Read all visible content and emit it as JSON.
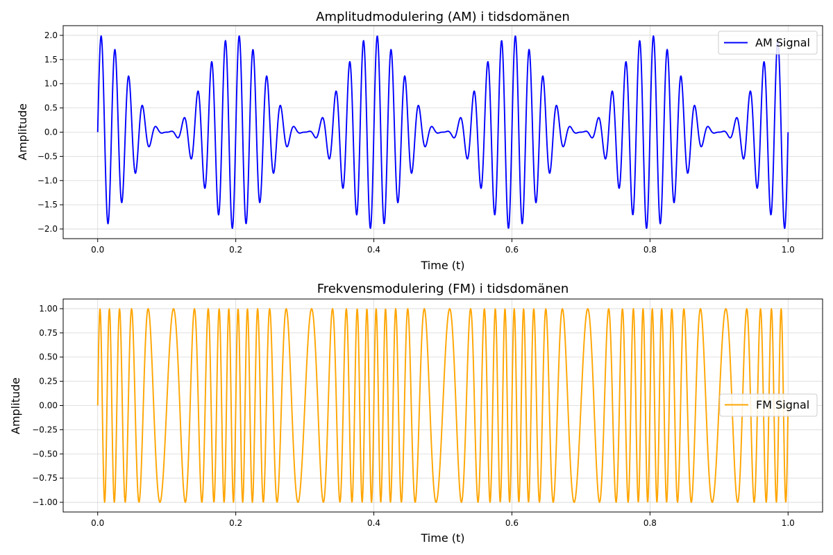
{
  "chart_data": [
    {
      "type": "line",
      "title": "Amplitudmodulering (AM) i tidsdomänen",
      "xlabel": "Time (t)",
      "ylabel": "Amplitude",
      "xlim": [
        -0.05,
        1.05
      ],
      "ylim": [
        -2.2,
        2.2
      ],
      "xticks": [
        0.0,
        0.2,
        0.4,
        0.6,
        0.8,
        1.0
      ],
      "xtick_labels": [
        "0.0",
        "0.2",
        "0.4",
        "0.6",
        "0.8",
        "1.0"
      ],
      "yticks": [
        -2.0,
        -1.5,
        -1.0,
        -0.5,
        0.0,
        0.5,
        1.0,
        1.5,
        2.0
      ],
      "ytick_labels": [
        "−2.0",
        "−1.5",
        "−1.0",
        "−0.5",
        "0.0",
        "0.5",
        "1.0",
        "1.5",
        "2.0"
      ],
      "grid": true,
      "legend_position": "top-right",
      "series": [
        {
          "name": "AM Signal",
          "color": "#0000ff",
          "formula": "(1 + cos(2*pi*5*t)) * sin(2*pi*50*t)",
          "x_range": [
            0,
            1
          ],
          "samples": 2000
        }
      ]
    },
    {
      "type": "line",
      "title": "Frekvensmodulering (FM) i tidsdomänen",
      "xlabel": "Time (t)",
      "ylabel": "Amplitude",
      "xlim": [
        -0.05,
        1.05
      ],
      "ylim": [
        -1.1,
        1.1
      ],
      "xticks": [
        0.0,
        0.2,
        0.4,
        0.6,
        0.8,
        1.0
      ],
      "xtick_labels": [
        "0.0",
        "0.2",
        "0.4",
        "0.6",
        "0.8",
        "1.0"
      ],
      "yticks": [
        -1.0,
        -0.75,
        -0.5,
        -0.25,
        0.0,
        0.25,
        0.5,
        0.75,
        1.0
      ],
      "ytick_labels": [
        "−1.00",
        "−0.75",
        "−0.50",
        "−0.25",
        "0.00",
        "0.25",
        "0.50",
        "0.75",
        "1.00"
      ],
      "grid": true,
      "legend_position": "center-right",
      "series": [
        {
          "name": "FM Signal",
          "color": "#ffa500",
          "formula": "sin(2*pi*50*t + 5*sin(2*pi*5*t))",
          "x_range": [
            0,
            1
          ],
          "samples": 2000
        }
      ]
    }
  ]
}
